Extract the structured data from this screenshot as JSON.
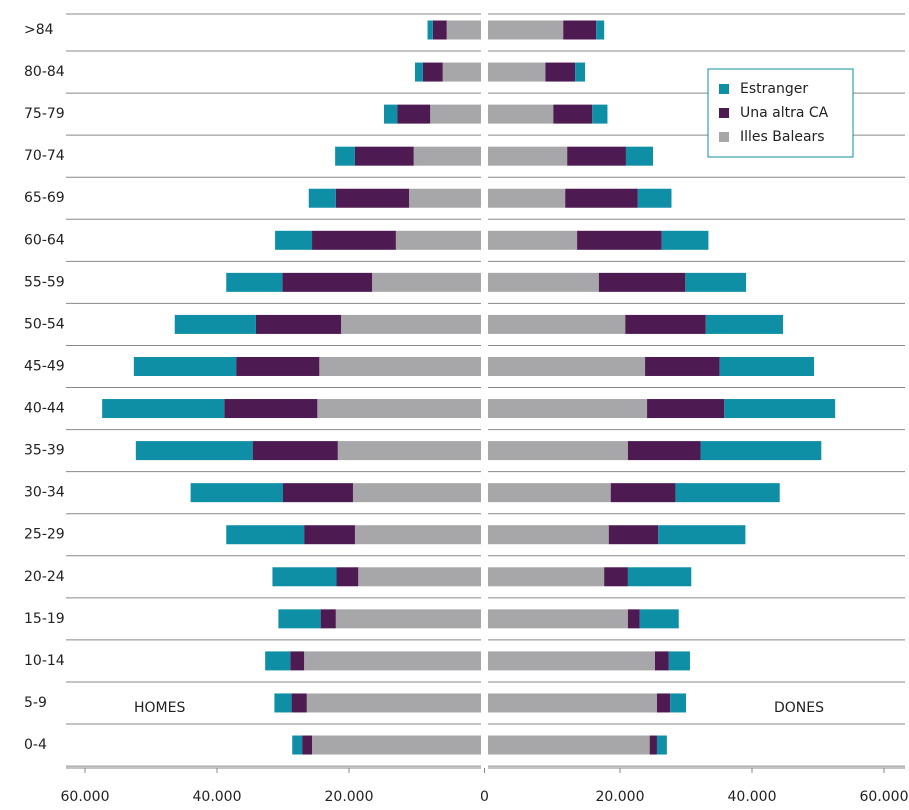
{
  "chart_data": {
    "type": "pyramid",
    "categories": [
      ">84",
      "80-84",
      "75-79",
      "70-74",
      "65-69",
      "60-64",
      "55-59",
      "50-54",
      "45-49",
      "40-44",
      "35-39",
      "30-34",
      "25-29",
      "20-24",
      "15-19",
      "10-14",
      "5-9",
      "0-4"
    ],
    "left_label": "HOMES",
    "right_label": "DONES",
    "series": [
      {
        "name": "Estranger",
        "color": "#0e8fa6",
        "left": [
          0.8,
          1.2,
          2.0,
          3.0,
          4.1,
          5.6,
          8.5,
          12.3,
          15.5,
          18.5,
          17.7,
          14.0,
          11.8,
          9.7,
          6.4,
          3.8,
          2.6,
          1.5
        ],
        "right": [
          1.2,
          1.5,
          2.3,
          4.1,
          5.1,
          7.1,
          9.2,
          11.7,
          14.3,
          16.8,
          18.3,
          15.8,
          13.2,
          9.6,
          5.9,
          3.2,
          2.4,
          1.5
        ]
      },
      {
        "name": "Una altra CA",
        "color": "#4e1a52",
        "left": [
          2.1,
          3.0,
          5.0,
          8.9,
          11.1,
          12.7,
          13.6,
          12.9,
          12.6,
          14.1,
          12.9,
          10.6,
          7.7,
          3.3,
          2.3,
          2.1,
          2.3,
          1.5
        ],
        "right": [
          5.0,
          4.5,
          5.9,
          8.9,
          11.0,
          12.8,
          13.1,
          12.2,
          11.3,
          11.7,
          11.0,
          9.8,
          7.5,
          3.6,
          1.8,
          2.1,
          2.0,
          1.1
        ]
      },
      {
        "name": "Illes Balears",
        "color": "#a7a7a9",
        "left": [
          5.2,
          5.8,
          7.7,
          10.2,
          10.9,
          12.9,
          16.5,
          21.2,
          24.5,
          24.8,
          21.7,
          19.4,
          19.1,
          18.6,
          22.0,
          26.8,
          26.4,
          25.6
        ],
        "right": [
          11.4,
          8.7,
          9.9,
          12.0,
          11.7,
          13.5,
          16.8,
          20.8,
          23.8,
          24.1,
          21.2,
          18.6,
          18.3,
          17.6,
          21.2,
          25.3,
          25.6,
          24.5
        ]
      }
    ],
    "xlim": [
      0,
      60
    ],
    "xticks_left": [
      {
        "value": 60,
        "label": "60.000"
      },
      {
        "value": 40,
        "label": "40.000"
      },
      {
        "value": 20,
        "label": "20.000"
      },
      0
    ],
    "xticks_right": [
      {
        "value": 20,
        "label": "20.000"
      },
      {
        "value": 40,
        "label": "40.000"
      },
      {
        "value": 60,
        "label": "60.000"
      }
    ],
    "legend": "upper right"
  }
}
